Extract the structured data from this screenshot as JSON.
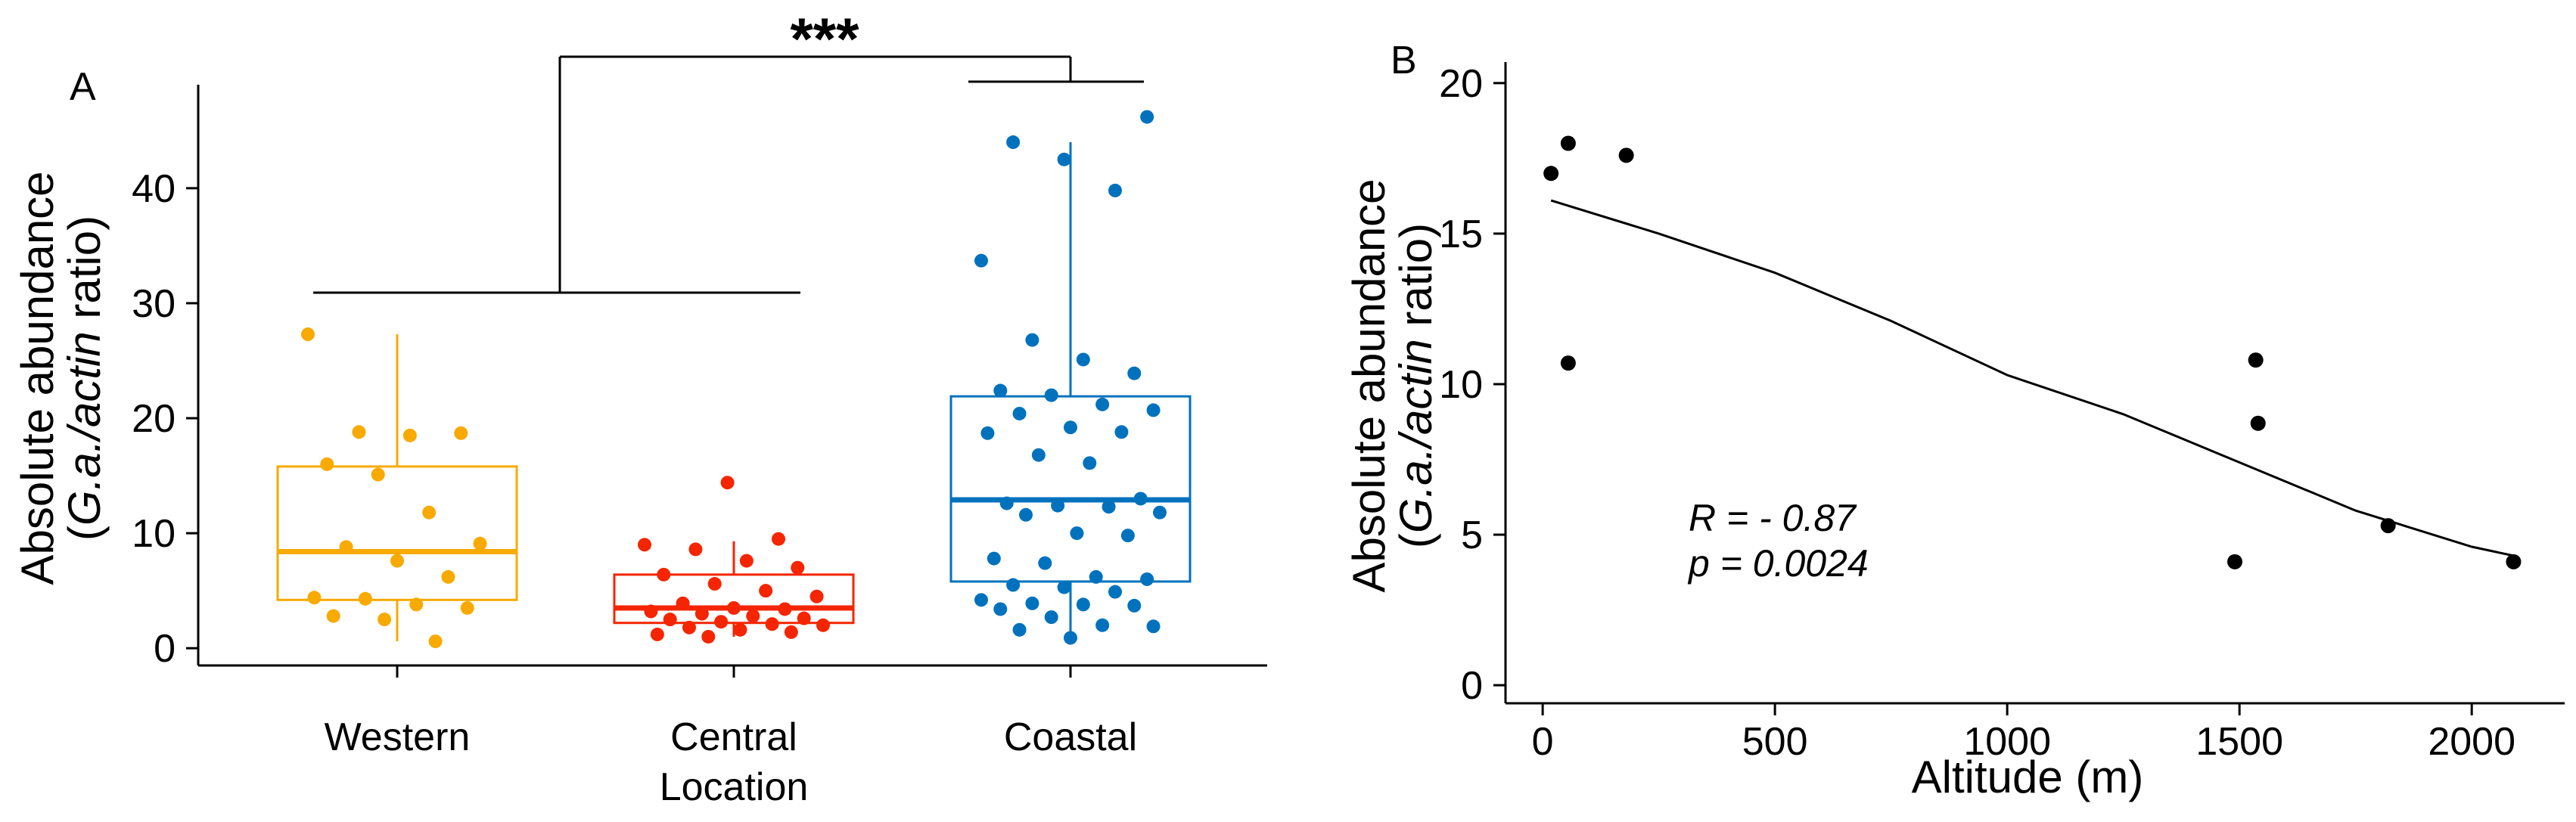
{
  "chart_data": [
    {
      "panel": "A",
      "type": "box",
      "ylabel_line1": "Absolute abundance",
      "ylabel_line2_pre": "(",
      "ylabel_line2_italic": "G.a./actin",
      "ylabel_line2_post": " ratio)",
      "ylim": [
        -1.5,
        49
      ],
      "yticks": [
        0,
        10,
        20,
        30,
        40
      ],
      "ytick_labels": [
        "0",
        "10",
        "20",
        "30",
        "40"
      ],
      "significance": "***",
      "groups": [
        {
          "name": "Western",
          "label_lines": [
            "Western"
          ],
          "color": "#F8AA00",
          "q1": 4.2,
          "median": 8.4,
          "q3": 15.8,
          "whisker_low": 0.6,
          "whisker_high": 27.3,
          "points": [
            27.3,
            18.8,
            18.5,
            18.7,
            16.0,
            15.1,
            11.8,
            9.1,
            8.8,
            7.6,
            6.2,
            4.4,
            4.3,
            3.8,
            3.5,
            2.8,
            2.5,
            0.6
          ]
        },
        {
          "name": "Central Location",
          "label_lines": [
            "Central",
            "Location"
          ],
          "color": "#F42500",
          "q1": 2.2,
          "median": 3.5,
          "q3": 6.4,
          "whisker_low": 1.0,
          "whisker_high": 9.3,
          "points": [
            14.4,
            9.5,
            9.0,
            8.6,
            7.6,
            7.0,
            6.4,
            5.6,
            5.0,
            4.5,
            3.9,
            3.5,
            3.4,
            3.2,
            3.0,
            2.8,
            2.6,
            2.5,
            2.3,
            2.1,
            2.0,
            1.8,
            1.6,
            1.4,
            1.2,
            1.0
          ]
        },
        {
          "name": "Coastal",
          "label_lines": [
            "Coastal"
          ],
          "color": "#0072BD",
          "q1": 5.8,
          "median": 12.9,
          "q3": 21.9,
          "whisker_low": 0.9,
          "whisker_high": 44.0,
          "points": [
            46.2,
            44.0,
            42.5,
            39.8,
            33.7,
            26.8,
            25.1,
            23.9,
            22.4,
            22.0,
            21.2,
            20.7,
            20.4,
            19.2,
            18.8,
            18.7,
            16.8,
            16.1,
            13.0,
            12.6,
            12.4,
            12.3,
            11.8,
            11.6,
            10.0,
            9.8,
            7.8,
            7.4,
            6.2,
            6.0,
            5.5,
            5.3,
            4.9,
            4.2,
            3.9,
            3.8,
            3.7,
            3.4,
            2.7,
            2.0,
            1.9,
            1.6,
            0.9
          ]
        }
      ]
    },
    {
      "panel": "B",
      "type": "scatter",
      "xlabel": "Altitude (m)",
      "ylabel_line1": "Absolute abundance",
      "ylabel_line2_pre": "(",
      "ylabel_line2_italic": "G.a./actin",
      "ylabel_line2_post": " ratio)",
      "xlim": [
        -80,
        2200
      ],
      "ylim": [
        -0.6,
        20.7
      ],
      "xticks": [
        0,
        500,
        1000,
        1500,
        2000
      ],
      "xtick_labels": [
        "0",
        "500",
        "1000",
        "1500",
        "2000"
      ],
      "yticks": [
        0,
        5,
        10,
        15,
        20
      ],
      "ytick_labels": [
        "0",
        "5",
        "10",
        "15",
        "20"
      ],
      "points": [
        {
          "x": 18,
          "y": 17.0
        },
        {
          "x": 55,
          "y": 18.0
        },
        {
          "x": 55,
          "y": 10.7
        },
        {
          "x": 180,
          "y": 17.6
        },
        {
          "x": 1490,
          "y": 4.1
        },
        {
          "x": 1535,
          "y": 10.8
        },
        {
          "x": 1540,
          "y": 8.7
        },
        {
          "x": 1820,
          "y": 5.3
        },
        {
          "x": 2090,
          "y": 4.1
        }
      ],
      "fit_line": [
        {
          "x": 18,
          "y": 16.1
        },
        {
          "x": 250,
          "y": 15.0
        },
        {
          "x": 500,
          "y": 13.7
        },
        {
          "x": 750,
          "y": 12.1
        },
        {
          "x": 1000,
          "y": 10.3
        },
        {
          "x": 1250,
          "y": 9.0
        },
        {
          "x": 1500,
          "y": 7.4
        },
        {
          "x": 1750,
          "y": 5.8
        },
        {
          "x": 2000,
          "y": 4.6
        },
        {
          "x": 2090,
          "y": 4.3
        }
      ],
      "annotation_r": "R = - 0.87",
      "annotation_p": "p = 0.0024"
    }
  ]
}
